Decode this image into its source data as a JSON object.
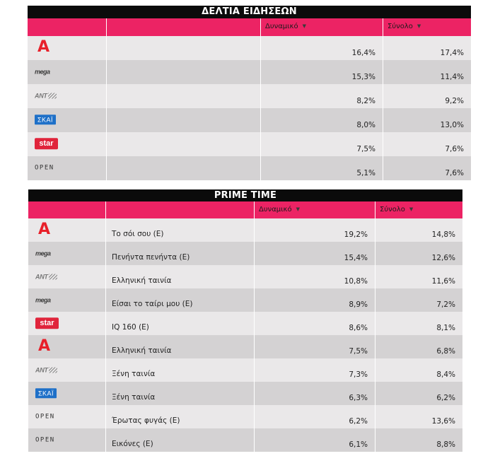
{
  "colors": {
    "header_bg": "#ec2364",
    "title_bg": "#0b0b0b",
    "row_gray": "#d4d2d3",
    "row_light": "#eae8e9"
  },
  "news": {
    "title": "ΔΕΛΤΙΑ ΕΙΔΗΣΕΩΝ",
    "headers": {
      "dynamic": "Δυναμικό",
      "total": "Σύνολο",
      "sort_glyph": "▼"
    },
    "rows": [
      {
        "channel": "Alpha",
        "logo": "alpha-logo",
        "logo_text": "A",
        "dynamic": "16,4%",
        "total": "17,4%"
      },
      {
        "channel": "Mega",
        "logo": "mega-logo",
        "logo_text": "mega",
        "dynamic": "15,3%",
        "total": "11,4%"
      },
      {
        "channel": "ANT1",
        "logo": "ant1-logo",
        "logo_text": "ANT",
        "dynamic": "8,2%",
        "total": "9,2%"
      },
      {
        "channel": "Skai",
        "logo": "skai-logo",
        "logo_text": "ΣΚΑΪ",
        "dynamic": "8,0%",
        "total": "13,0%"
      },
      {
        "channel": "Star",
        "logo": "star-logo",
        "logo_text": "star",
        "dynamic": "7,5%",
        "total": "7,6%"
      },
      {
        "channel": "Open",
        "logo": "open-logo",
        "logo_text": "OPEN",
        "dynamic": "5,1%",
        "total": "7,6%"
      }
    ]
  },
  "prime": {
    "title": "PRIME TIME",
    "headers": {
      "dynamic": "Δυναμικό",
      "total": "Σύνολο",
      "sort_glyph": "▼"
    },
    "rows": [
      {
        "channel": "Alpha",
        "logo": "alpha-logo",
        "logo_text": "A",
        "show": "Το σόι σου (E)",
        "dynamic": "19,2%",
        "total": "14,8%"
      },
      {
        "channel": "Mega",
        "logo": "mega-logo",
        "logo_text": "mega",
        "show": "Πενήντα πενήντα (E)",
        "dynamic": "15,4%",
        "total": "12,6%"
      },
      {
        "channel": "ANT1",
        "logo": "ant1-logo",
        "logo_text": "ANT",
        "show": "Ελληνική ταινία",
        "dynamic": "10,8%",
        "total": "11,6%"
      },
      {
        "channel": "Mega",
        "logo": "mega-logo",
        "logo_text": "mega",
        "show": "Είσαι το ταίρι μου (E)",
        "dynamic": "8,9%",
        "total": "7,2%"
      },
      {
        "channel": "Star",
        "logo": "star-logo",
        "logo_text": "star",
        "show": "IQ 160 (E)",
        "dynamic": "8,6%",
        "total": "8,1%"
      },
      {
        "channel": "Alpha",
        "logo": "alpha-logo",
        "logo_text": "A",
        "show": "Ελληνική ταινία",
        "dynamic": "7,5%",
        "total": "6,8%"
      },
      {
        "channel": "ANT1",
        "logo": "ant1-logo",
        "logo_text": "ANT",
        "show": "Ξένη ταινία",
        "dynamic": "7,3%",
        "total": "8,4%"
      },
      {
        "channel": "Skai",
        "logo": "skai-logo",
        "logo_text": "ΣΚΑΪ",
        "show": "Ξένη ταινία",
        "dynamic": "6,3%",
        "total": "6,2%"
      },
      {
        "channel": "Open",
        "logo": "open-logo",
        "logo_text": "OPEN",
        "show": "Έρωτας φυγάς (E)",
        "dynamic": "6,2%",
        "total": "13,6%"
      },
      {
        "channel": "Open",
        "logo": "open-logo",
        "logo_text": "OPEN",
        "show": "Εικόνες (E)",
        "dynamic": "6,1%",
        "total": "8,8%"
      }
    ]
  }
}
